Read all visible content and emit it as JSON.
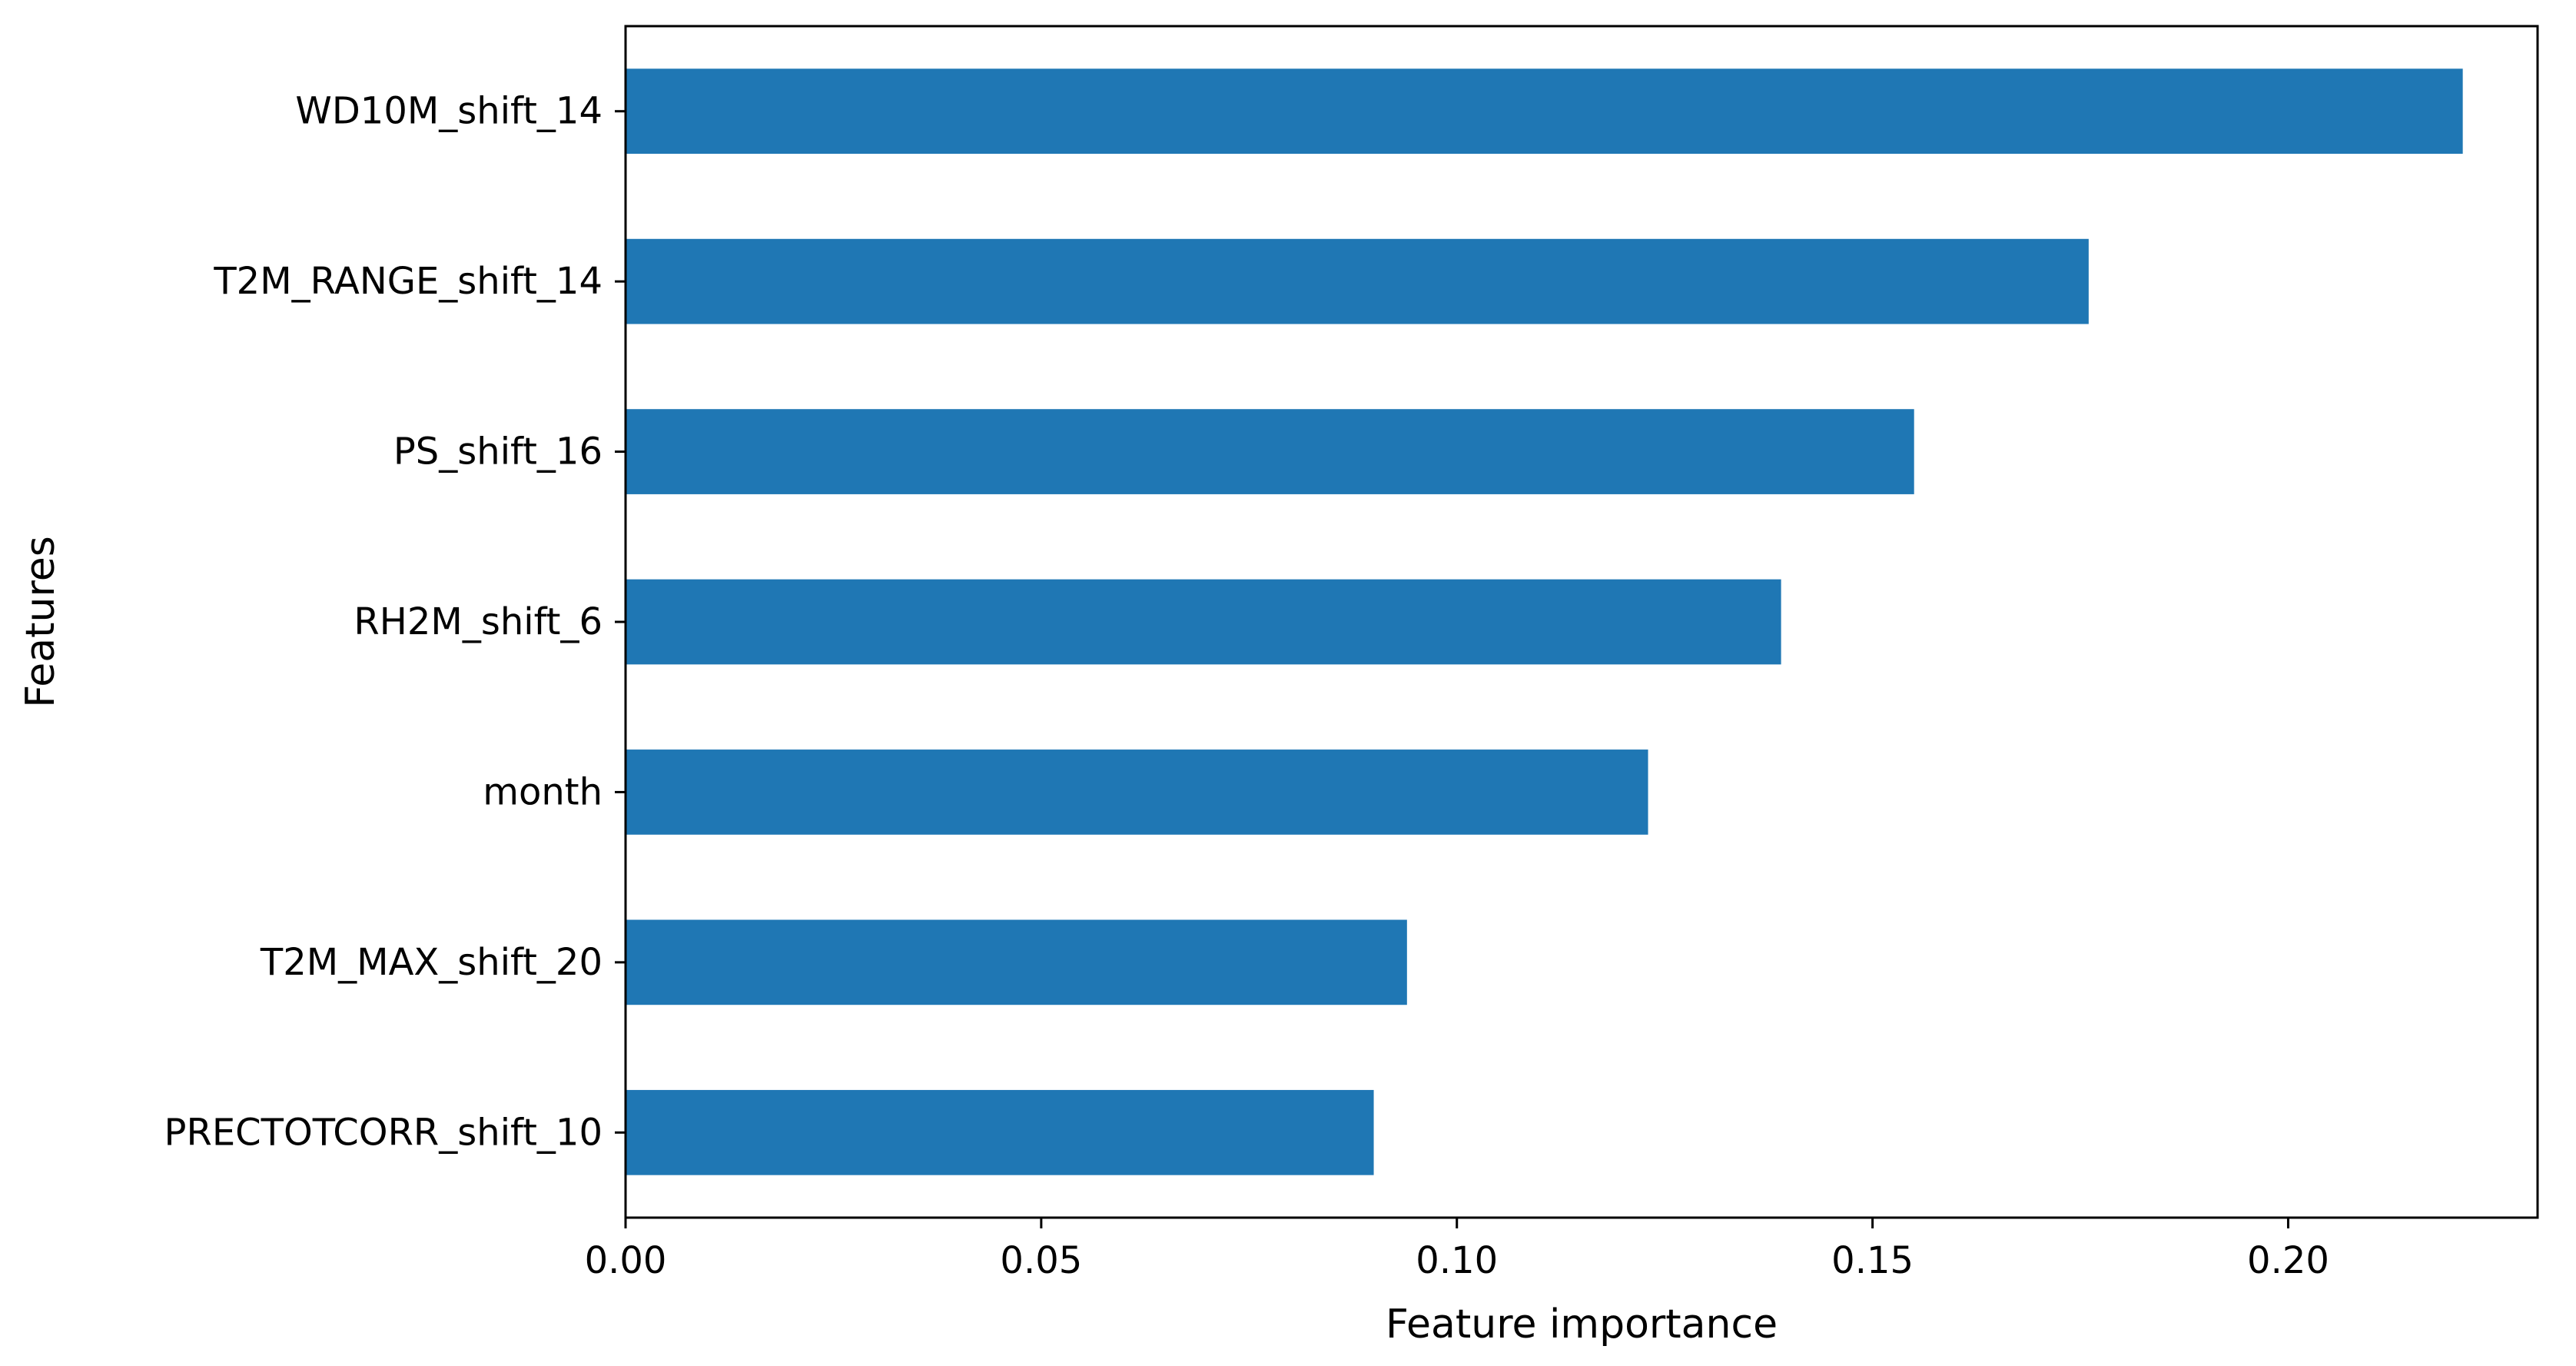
{
  "chart_data": {
    "type": "bar",
    "orientation": "horizontal",
    "categories": [
      "WD10M_shift_14",
      "T2M_RANGE_shift_14",
      "PS_shift_16",
      "RH2M_shift_6",
      "month",
      "T2M_MAX_shift_20",
      "PRECTOTCORR_shift_10"
    ],
    "values": [
      0.221,
      0.176,
      0.155,
      0.139,
      0.123,
      0.094,
      0.09
    ],
    "xlabel": "Feature importance",
    "ylabel": "Features",
    "xlim": [
      0,
      0.23
    ],
    "xticks": [
      0.0,
      0.05,
      0.1,
      0.15,
      0.2
    ],
    "xtick_labels": [
      "0.00",
      "0.05",
      "0.10",
      "0.15",
      "0.20"
    ],
    "grid": false,
    "colors": {
      "bar": "#1f77b4",
      "axes": "#000000"
    }
  }
}
